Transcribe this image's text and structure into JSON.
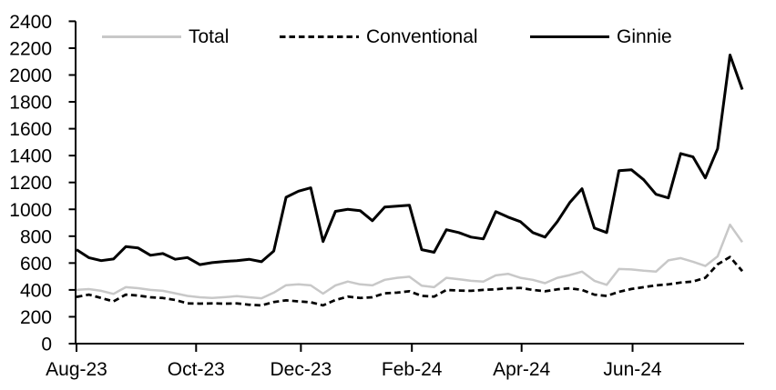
{
  "chart_data": {
    "type": "line",
    "title": "",
    "background": "#ffffff",
    "axis_color": "#000000",
    "grid": false,
    "legend_position": "top",
    "n_points": 55,
    "x_label": "",
    "y_label": "",
    "y_axis": {
      "min": 0,
      "max": 2400,
      "step": 200,
      "tick_values": [
        0,
        200,
        400,
        600,
        800,
        1000,
        1200,
        1400,
        1600,
        1800,
        2000,
        2200,
        2400
      ]
    },
    "x_axis": {
      "unit": "weekly",
      "ticks": [
        {
          "label": "Aug-23",
          "index": 0
        },
        {
          "label": "Oct-23",
          "index": 9.7
        },
        {
          "label": "Dec-23",
          "index": 18.2
        },
        {
          "label": "Feb-24",
          "index": 27.2
        },
        {
          "label": "Apr-24",
          "index": 36.1
        },
        {
          "label": "Jun-24",
          "index": 45.1
        }
      ]
    },
    "series": [
      {
        "name": "Total",
        "color": "#c8c8c8",
        "line_style": "solid",
        "line_width": 2.5,
        "values": [
          400,
          406,
          393,
          370,
          420,
          413,
          400,
          393,
          375,
          355,
          345,
          340,
          346,
          353,
          345,
          338,
          380,
          435,
          441,
          434,
          372,
          434,
          462,
          441,
          434,
          475,
          490,
          498,
          432,
          420,
          490,
          480,
          468,
          462,
          508,
          520,
          490,
          475,
          450,
          490,
          510,
          536,
          468,
          438,
          556,
          552,
          543,
          536,
          620,
          637,
          610,
          578,
          650,
          885,
          755
        ]
      },
      {
        "name": "Conventional",
        "color": "#000000",
        "line_style": "dashed",
        "line_width": 2.75,
        "values": [
          348,
          365,
          340,
          315,
          365,
          358,
          345,
          340,
          325,
          300,
          298,
          300,
          298,
          300,
          290,
          285,
          310,
          322,
          315,
          308,
          285,
          325,
          350,
          340,
          345,
          375,
          380,
          390,
          355,
          350,
          400,
          395,
          393,
          400,
          405,
          412,
          415,
          400,
          390,
          404,
          412,
          400,
          365,
          355,
          386,
          407,
          420,
          434,
          441,
          455,
          462,
          490,
          590,
          645,
          540
        ]
      },
      {
        "name": "Ginnie",
        "color": "#000000",
        "line_style": "solid",
        "line_width": 3,
        "values": [
          700,
          640,
          618,
          630,
          722,
          712,
          658,
          671,
          628,
          641,
          588,
          603,
          612,
          618,
          628,
          610,
          690,
          1090,
          1135,
          1160,
          760,
          985,
          1000,
          990,
          915,
          1017,
          1024,
          1031,
          700,
          680,
          848,
          827,
          793,
          780,
          983,
          942,
          908,
          827,
          793,
          908,
          1050,
          1153,
          860,
          827,
          1288,
          1295,
          1220,
          1112,
          1085,
          1415,
          1390,
          1234,
          1451,
          2149,
          1892
        ]
      }
    ]
  }
}
